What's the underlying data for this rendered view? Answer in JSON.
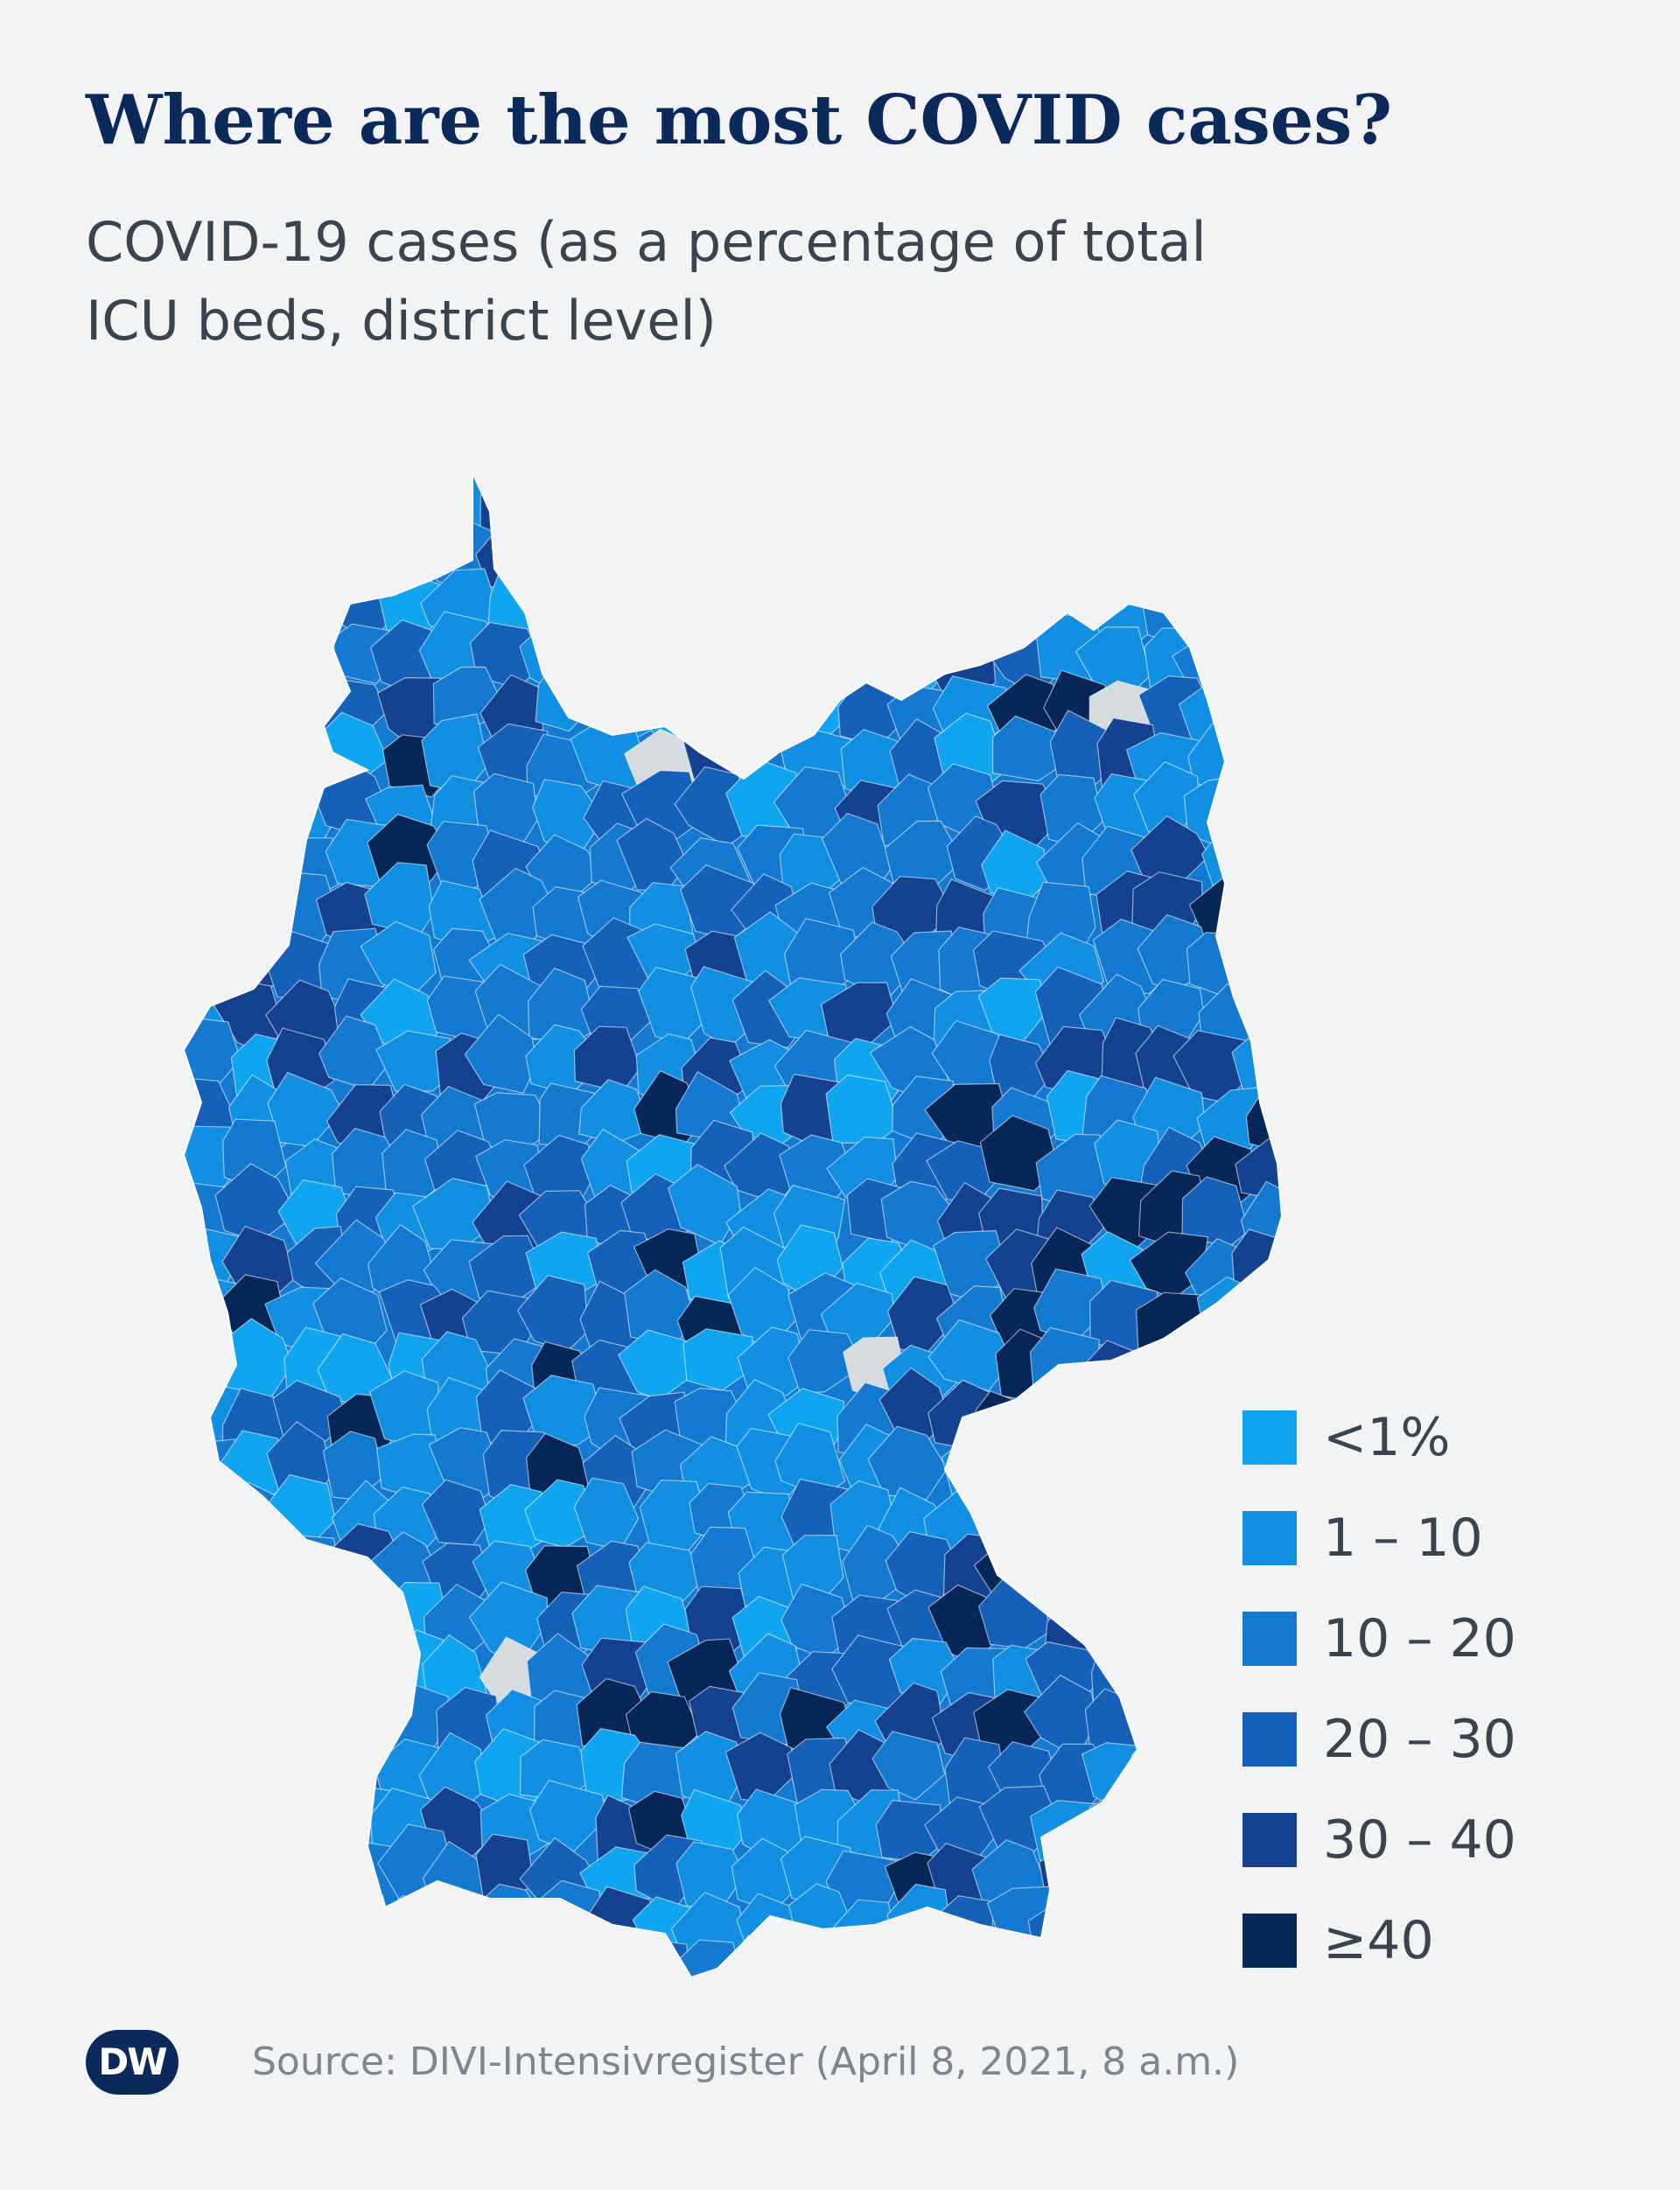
{
  "header": {
    "title": "Where are the most COVID cases?",
    "subtitle": "COVID-19 cases (as a percentage of total ICU beds, district level)"
  },
  "map": {
    "no_data_color": "#d7dbe0",
    "background_color": "#f1f3f5"
  },
  "legend": {
    "items": [
      {
        "label": "<1%",
        "color": "#0fa5f0"
      },
      {
        "label": "1 – 10",
        "color": "#108fe3"
      },
      {
        "label": "10 – 20",
        "color": "#1479d0"
      },
      {
        "label": "20 – 30",
        "color": "#1560b8"
      },
      {
        "label": "30 – 40",
        "color": "#154290"
      },
      {
        "label": "≥40",
        "color": "#072759"
      }
    ]
  },
  "footer": {
    "logo": "DW",
    "source": "Source: DIVI-Intensivregister (April 8, 2021, 8 a.m.)"
  }
}
